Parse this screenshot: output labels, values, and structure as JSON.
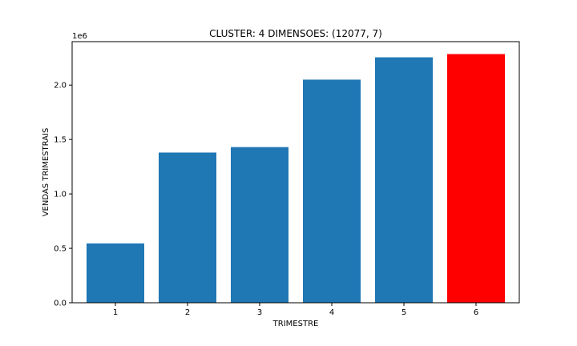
{
  "chart_data": {
    "type": "bar",
    "title": "CLUSTER: 4 DIMENSOES: (12077, 7)",
    "xlabel": "TRIMESTRE",
    "ylabel": "VENDAS TRIMESTRAIS",
    "offset_label": "1e6",
    "categories": [
      "1",
      "2",
      "3",
      "4",
      "5",
      "6"
    ],
    "values": [
      545000,
      1380000,
      1430000,
      2050000,
      2255000,
      2285000
    ],
    "bar_colors": [
      "#1f77b4",
      "#1f77b4",
      "#1f77b4",
      "#1f77b4",
      "#1f77b4",
      "#ff0000"
    ],
    "ylim": [
      0,
      2399000
    ],
    "yticks": [
      0,
      500000,
      1000000,
      1500000,
      2000000
    ],
    "ytick_labels": [
      "0.0",
      "0.5",
      "1.0",
      "1.5",
      "2.0"
    ],
    "grid": false,
    "legend": "none"
  }
}
